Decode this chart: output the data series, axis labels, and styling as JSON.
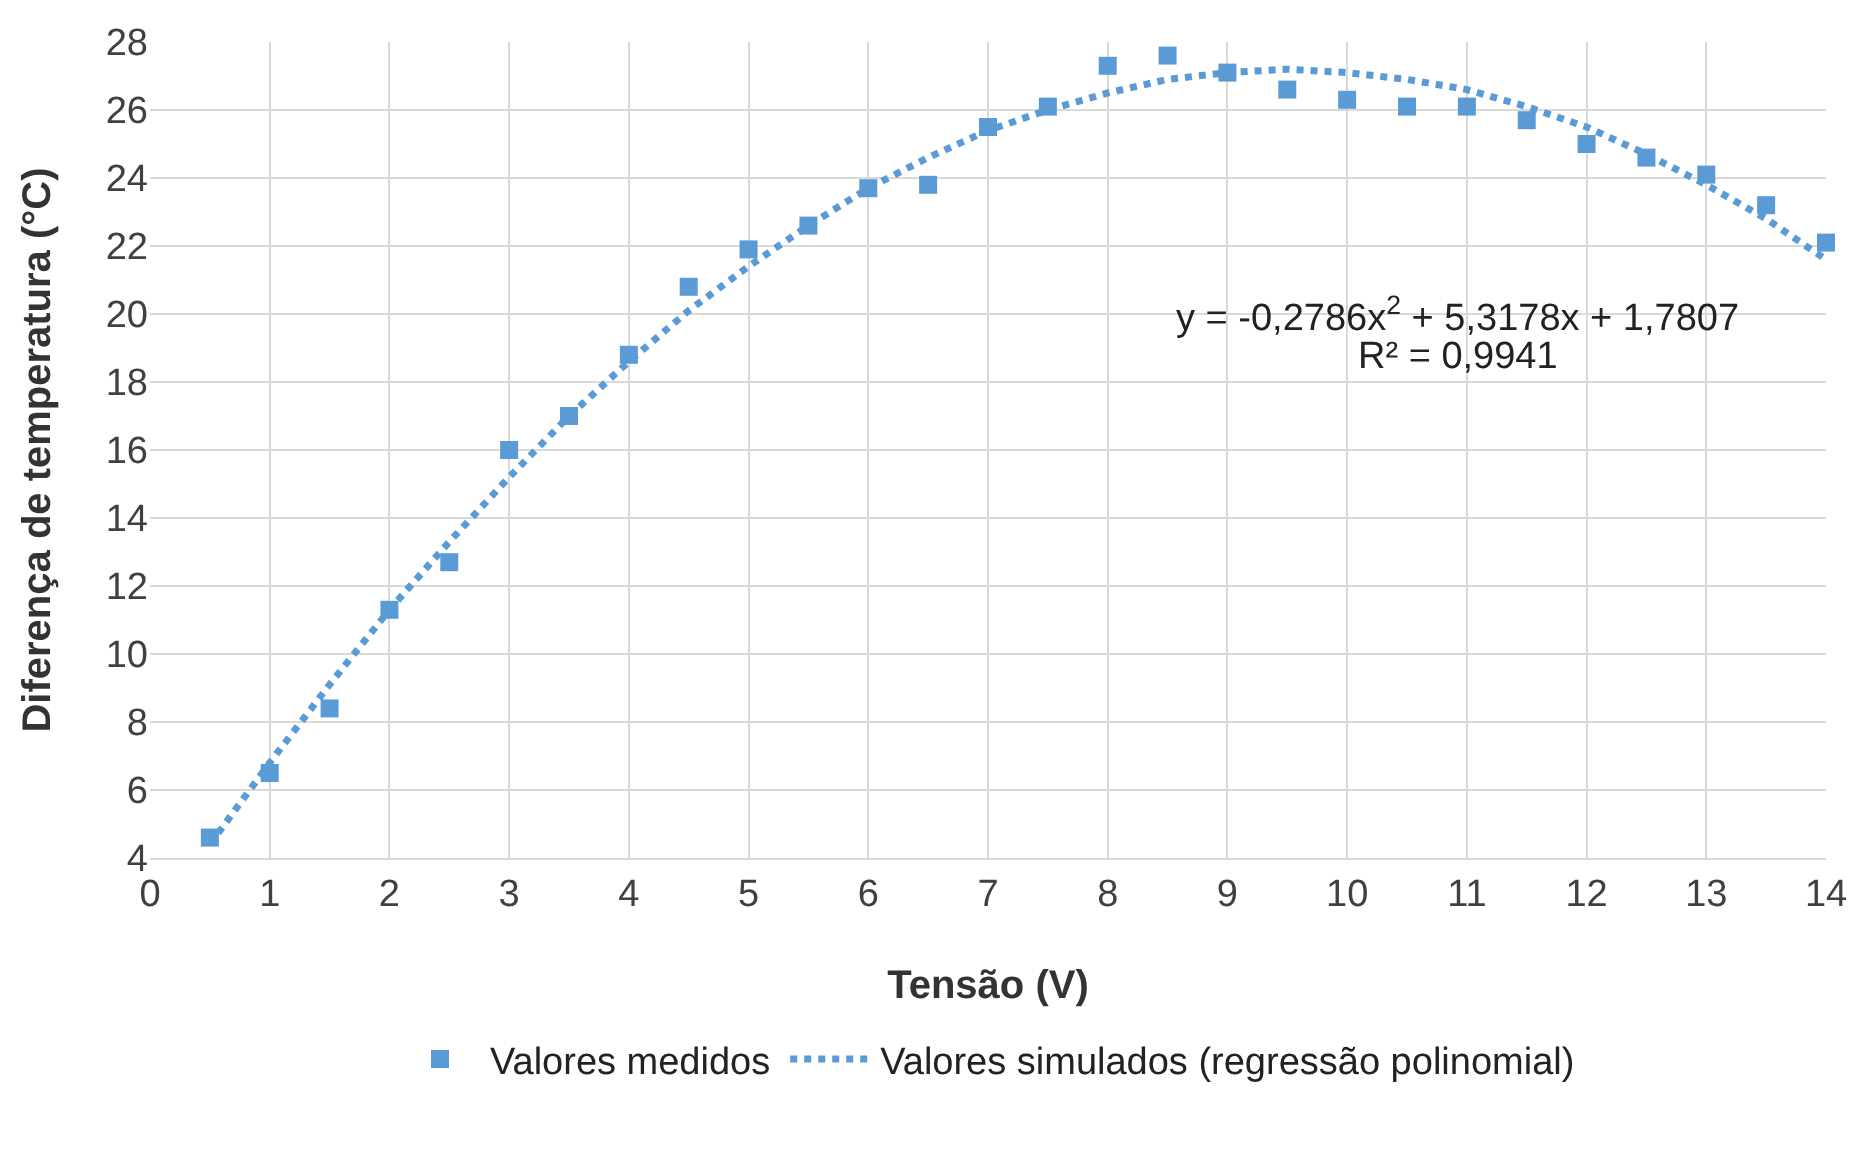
{
  "chart_data": {
    "type": "scatter",
    "xlabel": "Tensão (V)",
    "ylabel": "Diferença de temperatura (°C)",
    "xlim": [
      0,
      14
    ],
    "xticks": [
      0,
      1,
      2,
      3,
      4,
      5,
      6,
      7,
      8,
      9,
      10,
      11,
      12,
      13,
      14
    ],
    "ylim": [
      4,
      28
    ],
    "yticks": [
      4,
      6,
      8,
      10,
      12,
      14,
      16,
      18,
      20,
      22,
      24,
      26,
      28
    ],
    "grid": true,
    "legend": "bottom",
    "annotations": [
      "y = -0,2786x$^{2}$ + 5,3178x + 1,7807",
      "R² = 0,9941"
    ],
    "series": [
      {
        "name": "Valores medidos",
        "type": "scatter",
        "marker": "square",
        "color": "#5b9bd5",
        "x": [
          0.5,
          1,
          1.5,
          2,
          2.5,
          3,
          3.5,
          4,
          4.5,
          5,
          5.5,
          6,
          6.5,
          7,
          7.5,
          8,
          8.5,
          9,
          9.5,
          10,
          10.5,
          11,
          11.5,
          12,
          12.5,
          13,
          13.5,
          14
        ],
        "values": [
          4.6,
          6.5,
          8.4,
          11.3,
          12.7,
          16.0,
          17.0,
          18.8,
          20.8,
          21.9,
          22.6,
          23.7,
          23.8,
          25.5,
          26.1,
          27.3,
          27.6,
          27.1,
          26.6,
          26.3,
          26.1,
          26.1,
          25.7,
          25.0,
          24.6,
          24.1,
          23.2,
          22.1
        ]
      },
      {
        "name": "Valores simulados (regressão polinomial)",
        "type": "line",
        "marker": "none",
        "line_style": "dotted",
        "color": "#5b9bd5",
        "x": [
          0.5,
          1,
          1.5,
          2,
          2.5,
          3,
          3.5,
          4,
          4.5,
          5,
          5.5,
          6,
          6.5,
          7,
          7.5,
          8,
          8.5,
          9,
          9.5,
          10,
          10.5,
          11,
          11.5,
          12,
          12.5,
          13,
          13.5,
          14
        ],
        "values": [
          4.4,
          6.8,
          9.1,
          11.3,
          13.3,
          15.2,
          17.0,
          18.6,
          20.1,
          21.4,
          22.6,
          23.7,
          24.6,
          25.4,
          26.0,
          26.5,
          26.9,
          27.1,
          27.2,
          27.1,
          26.9,
          26.6,
          26.1,
          25.5,
          24.7,
          23.8,
          22.8,
          21.6
        ]
      }
    ]
  }
}
